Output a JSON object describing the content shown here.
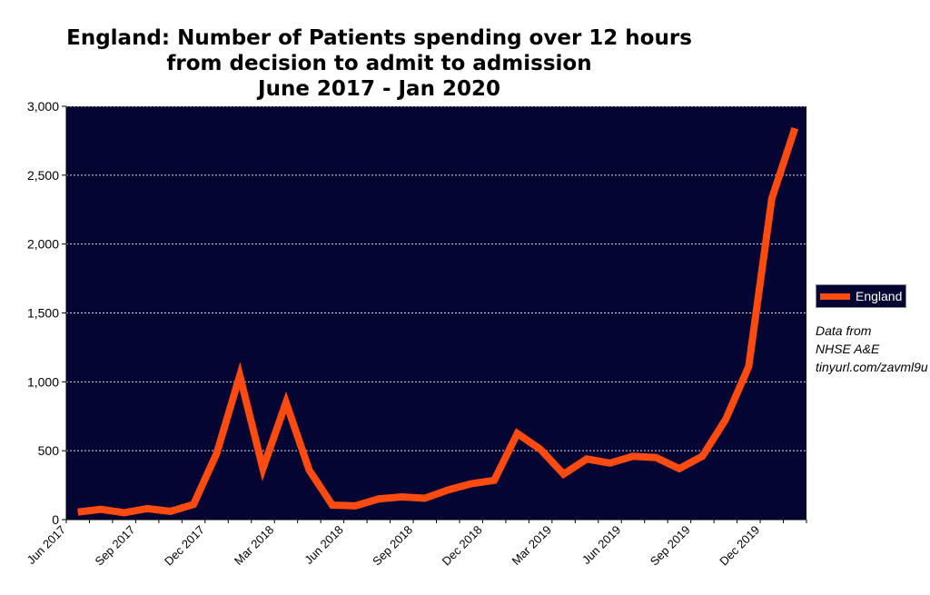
{
  "chart_data": {
    "type": "line",
    "title": [
      "England: Number of Patients spending over 12 hours",
      "from decision to admit to admission",
      "June 2017 - Jan 2020"
    ],
    "xlabel": "",
    "ylabel": "",
    "ylim": [
      0,
      3000
    ],
    "yticks": [
      0,
      500,
      1000,
      1500,
      2000,
      2500,
      3000
    ],
    "ytick_labels": [
      "0",
      "500",
      "1,000",
      "1,500",
      "2,000",
      "2,500",
      "3,000"
    ],
    "xtick_labels": [
      "Jun 2017",
      "Sep 2017",
      "Dec 2017",
      "Mar 2018",
      "Jun 2018",
      "Sep 2018",
      "Dec 2018",
      "Mar 2019",
      "Jun 2019",
      "Sep 2019",
      "Dec 2019"
    ],
    "x": [
      "Jun 2017",
      "Jul 2017",
      "Aug 2017",
      "Sep 2017",
      "Oct 2017",
      "Nov 2017",
      "Dec 2017",
      "Jan 2018",
      "Feb 2018",
      "Mar 2018",
      "Apr 2018",
      "May 2018",
      "Jun 2018",
      "Jul 2018",
      "Aug 2018",
      "Sep 2018",
      "Oct 2018",
      "Nov 2018",
      "Dec 2018",
      "Jan 2019",
      "Feb 2019",
      "Mar 2019",
      "Apr 2019",
      "May 2019",
      "Jun 2019",
      "Jul 2019",
      "Aug 2019",
      "Sep 2019",
      "Oct 2019",
      "Nov 2019",
      "Dec 2019",
      "Jan 2020"
    ],
    "series": [
      {
        "name": "England",
        "color": "#ff4a10",
        "values": [
          55,
          75,
          50,
          80,
          60,
          110,
          480,
          1045,
          370,
          850,
          360,
          105,
          100,
          150,
          165,
          155,
          215,
          260,
          285,
          625,
          510,
          330,
          440,
          410,
          460,
          450,
          370,
          460,
          725,
          1110,
          2330,
          2840
        ]
      }
    ],
    "grid": true,
    "legend_position": "right",
    "plot_background": "#050533",
    "grid_color": "#ffffff"
  },
  "source_note": [
    "Data from",
    "NHSE A&E",
    "tinyurl.com/zavml9u"
  ]
}
